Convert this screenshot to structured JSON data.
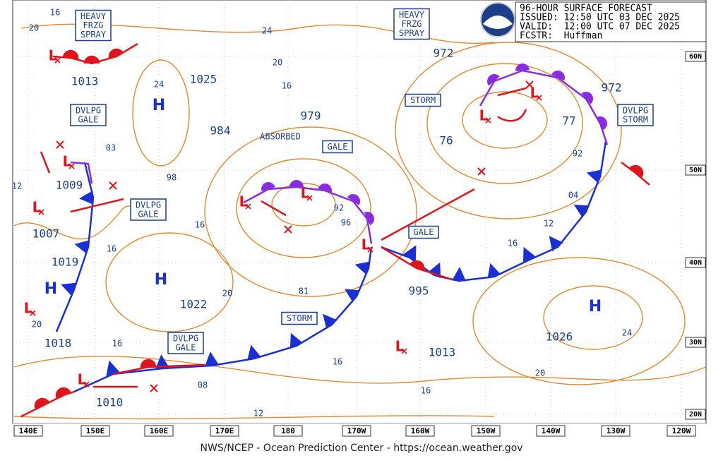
{
  "header": {
    "lines": [
      "96-HOUR SURFACE FORECAST",
      "ISSUED: 12:50 UTC 03 DEC 2025",
      "VALID:  12:00 UTC 07 DEC 2025",
      "FCSTR:  Huffman"
    ]
  },
  "footer": "NWS/NCEP - Ocean Prediction Center - https://ocean.weather.gov",
  "longitude_labels": [
    "140E",
    "150E",
    "160E",
    "170E",
    "180",
    "170W",
    "160W",
    "150W",
    "140W",
    "130W",
    "120W"
  ],
  "latitude_labels": [
    "60N",
    "50N",
    "40N",
    "30N",
    "20N"
  ],
  "highs": [
    "H",
    "H",
    "H",
    "H"
  ],
  "lows": [
    "L",
    "L",
    "L",
    "L",
    "L",
    "L",
    "L",
    "L",
    "L",
    "L",
    "L"
  ],
  "pressure_labels": [
    "1013",
    "1025",
    "979",
    "984",
    "972",
    "972",
    "76",
    "77",
    "03",
    "1009",
    "98",
    "1007",
    "1019",
    "1022",
    "81",
    "995",
    "1026",
    "1013",
    "1018",
    "08",
    "1010",
    "92",
    "96",
    "92",
    "04"
  ],
  "isobar_labels": [
    "16",
    "20",
    "24",
    "20",
    "16",
    "24",
    "12",
    "16",
    "16",
    "20",
    "20",
    "16",
    "16",
    "12",
    "16",
    "24",
    "20",
    "16",
    "12"
  ],
  "warnings": [
    {
      "lines": [
        "HEAVY",
        "FRZG",
        "SPRAY"
      ]
    },
    {
      "lines": [
        "HEAVY",
        "FRZG",
        "SPRAY"
      ]
    },
    {
      "lines": [
        "DVLPG",
        "GALE"
      ]
    },
    {
      "lines": [
        "STORM"
      ]
    },
    {
      "lines": [
        "DVLPG",
        "STORM"
      ]
    },
    {
      "lines": [
        "GALE"
      ]
    },
    {
      "lines": [
        "DVLPG",
        "GALE"
      ]
    },
    {
      "lines": [
        "GALE"
      ]
    },
    {
      "lines": [
        "STORM"
      ]
    },
    {
      "lines": [
        "DVLPG",
        "GALE"
      ]
    }
  ],
  "annotations": [
    "ABSORBED"
  ]
}
